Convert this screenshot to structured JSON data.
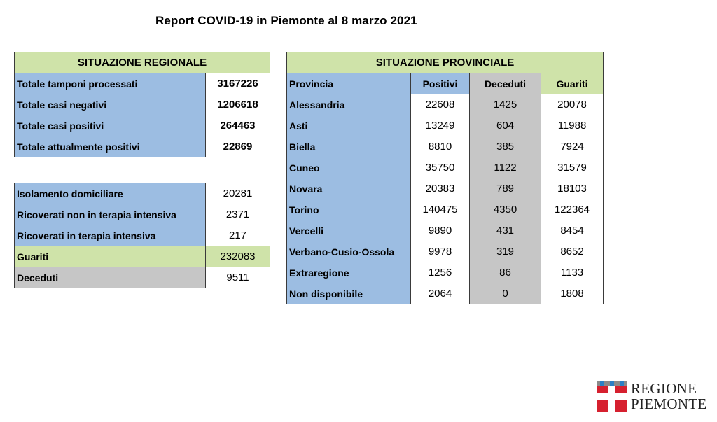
{
  "title": "Report COVID-19 in Piemonte al 8 marzo 2021",
  "regionale": {
    "header": "SITUAZIONE REGIONALE",
    "rows": [
      {
        "label": "Totale tamponi processati",
        "value": "3167226"
      },
      {
        "label": "Totale casi negativi",
        "value": "1206618"
      },
      {
        "label": "Totale casi positivi",
        "value": "264463"
      },
      {
        "label": "Totale attualmente positivi",
        "value": "22869"
      }
    ],
    "details": [
      {
        "label": "Isolamento domiciliare",
        "value": "20281"
      },
      {
        "label": "Ricoverati non in terapia intensiva",
        "value": "2371"
      },
      {
        "label": "Ricoverati in terapia intensiva",
        "value": "217"
      },
      {
        "label": "Guariti",
        "value": "232083"
      },
      {
        "label": "Deceduti",
        "value": "9511"
      }
    ]
  },
  "provinciale": {
    "header": "SITUAZIONE PROVINCIALE",
    "columns": [
      "Provincia",
      "Positivi",
      "Deceduti",
      "Guariti"
    ],
    "rows": [
      {
        "provincia": "Alessandria",
        "positivi": "22608",
        "deceduti": "1425",
        "guariti": "20078"
      },
      {
        "provincia": "Asti",
        "positivi": "13249",
        "deceduti": "604",
        "guariti": "11988"
      },
      {
        "provincia": "Biella",
        "positivi": "8810",
        "deceduti": "385",
        "guariti": "7924"
      },
      {
        "provincia": "Cuneo",
        "positivi": "35750",
        "deceduti": "1122",
        "guariti": "31579"
      },
      {
        "provincia": "Novara",
        "positivi": "20383",
        "deceduti": "789",
        "guariti": "18103"
      },
      {
        "provincia": "Torino",
        "positivi": "140475",
        "deceduti": "4350",
        "guariti": "122364"
      },
      {
        "provincia": "Vercelli",
        "positivi": "9890",
        "deceduti": "431",
        "guariti": "8454"
      },
      {
        "provincia": "Verbano-Cusio-Ossola",
        "positivi": "9978",
        "deceduti": "319",
        "guariti": "8652"
      },
      {
        "provincia": "Extraregione",
        "positivi": "1256",
        "deceduti": "86",
        "guariti": "1133"
      },
      {
        "provincia": "Non disponibile",
        "positivi": "2064",
        "deceduti": "0",
        "guariti": "1808"
      }
    ]
  },
  "logo": {
    "line1": "REGIONE",
    "line2": "PIEMONTE",
    "colors": {
      "red": "#d6202f",
      "blue": "#2c7fc4",
      "gray": "#8a8a8a"
    }
  }
}
